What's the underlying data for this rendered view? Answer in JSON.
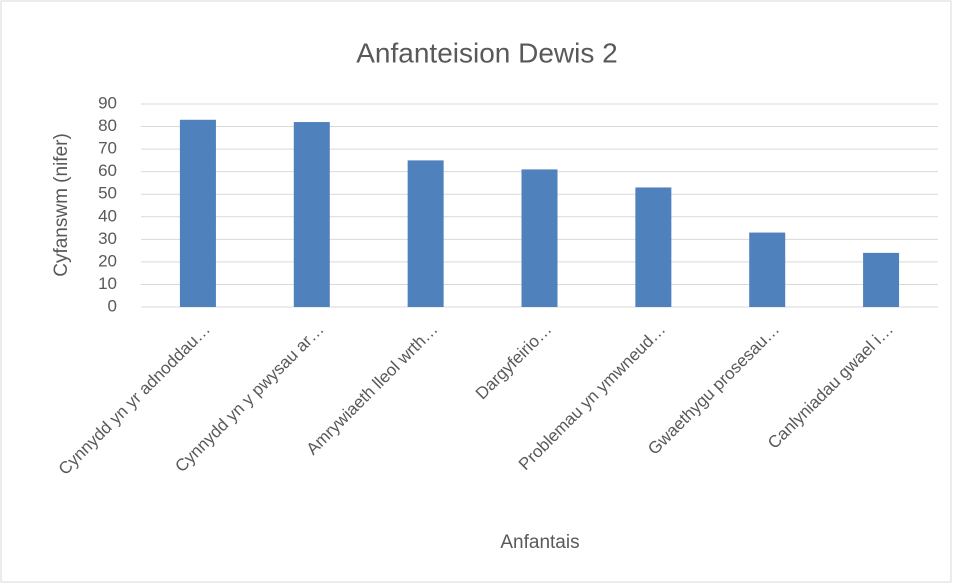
{
  "chart_data": {
    "type": "bar",
    "title": "Anfanteision Dewis 2",
    "x_label": "Anfantais",
    "y_label": "Cyfanswm (nifer)",
    "categories": [
      "Cynnydd yn yr adnoddau…",
      "Cynnydd yn y pwysau ar…",
      "Amrywiaeth lleol wrth…",
      "Dargyfeirio…",
      "Problemau yn ymwneud…",
      "Gwaethygu prosesau…",
      "Canlyniadau gwael i…"
    ],
    "values": [
      83,
      82,
      65,
      61,
      53,
      33,
      24
    ],
    "color": "#4f81bd",
    "ylim": [
      0,
      90
    ],
    "yticks": [
      0,
      10,
      20,
      30,
      40,
      50,
      60,
      70,
      80,
      90
    ],
    "grid": true
  }
}
